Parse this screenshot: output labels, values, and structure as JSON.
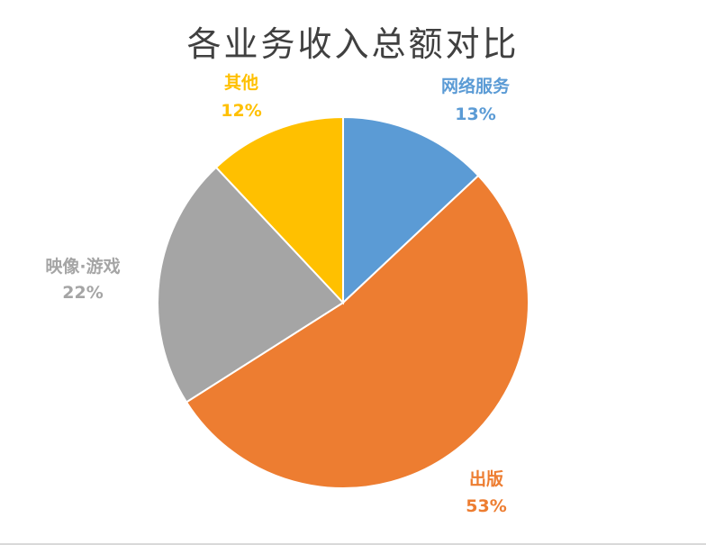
{
  "chart_data": {
    "type": "pie",
    "title": "各业务收入总额对比",
    "slices": [
      {
        "label": "网络服务",
        "value": 13,
        "value_label": "13%",
        "color": "#5b9bd5"
      },
      {
        "label": "出版",
        "value": 53,
        "value_label": "53%",
        "color": "#ed7d31"
      },
      {
        "label": "映像·游戏",
        "value": 22,
        "value_label": "22%",
        "color": "#a5a5a5"
      },
      {
        "label": "其他",
        "value": 12,
        "value_label": "12%",
        "color": "#ffc000"
      }
    ],
    "start_angle_deg": 0,
    "direction": "clockwise",
    "legend": "none",
    "data_labels": "outside"
  }
}
